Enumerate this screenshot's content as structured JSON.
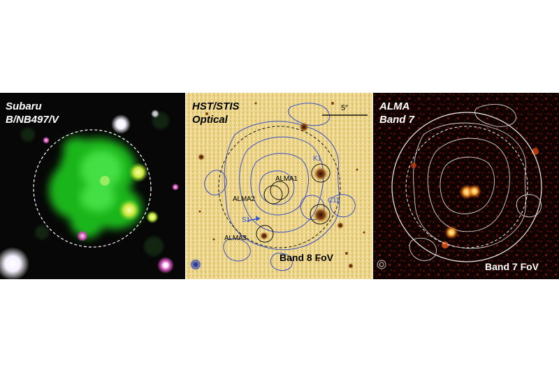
{
  "panels": {
    "subaru": {
      "label": "Subaru\nB/NB497/V"
    },
    "hst": {
      "label": "HST/STIS\nOptical",
      "scale_label": "5″",
      "fov_label": "Band 8 FoV",
      "sources": {
        "alma1": "ALMA1",
        "alma2": "ALMA2",
        "alma3": "ALMA3",
        "k1": "K1",
        "c11": "C11",
        "s1": "S1"
      }
    },
    "alma": {
      "label": "ALMA\nBand 7",
      "fov_label": "Band 7 FoV"
    }
  },
  "colors": {
    "subaru_blob": "#27d027",
    "hst_background": "#ecd58a",
    "contour_blue": "#3a4fc6",
    "alma_background": "#100200",
    "alma_source": "#ffd27a",
    "label_blue": "#2f4fd8"
  }
}
